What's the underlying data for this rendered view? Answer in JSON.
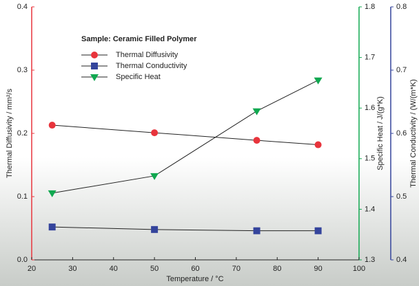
{
  "chart_data": {
    "type": "line",
    "subtitle": "Sample: Ceramic Filled Polymer",
    "x_label": "Temperature / °C",
    "y_label": "Thermal Diffusivity / mm²/s",
    "y2_label": "Specific Heat / J/(g*K)",
    "y3_label": "Thermal Conductivity / (W/(m*K)",
    "x": [
      25,
      50,
      75,
      90
    ],
    "xlim": [
      20,
      100
    ],
    "xticks": [
      20,
      30,
      40,
      50,
      60,
      70,
      80,
      90,
      100
    ],
    "ylim": [
      0,
      0.4
    ],
    "yticks": [
      {
        "value": 0,
        "label": "0.0"
      },
      0.1,
      0.2,
      0.3,
      0.4
    ],
    "y2lim": [
      1.3,
      1.8
    ],
    "y2ticks": [
      1.3,
      1.4,
      1.5,
      1.6,
      1.7,
      1.8
    ],
    "y3lim": [
      0.4,
      0.8
    ],
    "y3ticks": [
      0.4,
      0.5,
      0.6,
      0.7,
      0.8
    ],
    "series": [
      {
        "name": "Thermal Diffusivity",
        "color": "#e8343c",
        "marker": "circle",
        "axis": "y",
        "values": [
          0.213,
          0.201,
          0.189,
          0.182
        ]
      },
      {
        "name": "Thermal Conductivity",
        "color": "#34449c",
        "marker": "square",
        "axis": "y3",
        "values": [
          0.452,
          0.448,
          0.446,
          0.446
        ]
      },
      {
        "name": "Specific Heat",
        "color": "#10a850",
        "marker": "triangle",
        "axis": "y2",
        "values": [
          1.432,
          1.466,
          1.594,
          1.655
        ]
      }
    ]
  }
}
